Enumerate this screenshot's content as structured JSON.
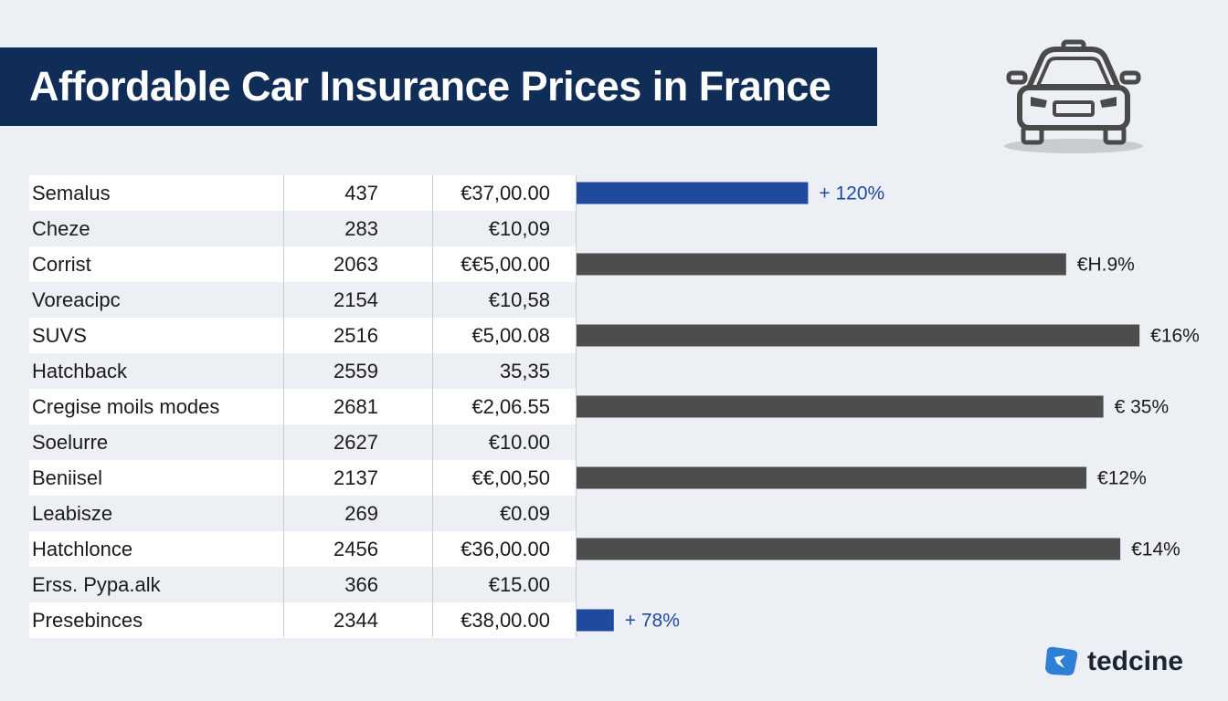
{
  "header": {
    "title": "Affordable Car Insurance Prices in France"
  },
  "brand": {
    "name": "tedcine",
    "logo_icon": "brand-logo-icon",
    "accent": "#2f7fd6"
  },
  "colors": {
    "banner": "#0f2d57",
    "bar_blue": "#1f4a9e",
    "bar_gray": "#4d4d4d",
    "pct_blue": "#1f4a9e",
    "pct_dark": "#1b1b1b"
  },
  "icons": {
    "car": "car-icon"
  },
  "chart_data": {
    "type": "table",
    "columns": [
      "",
      "",
      "",
      ""
    ],
    "rows": [
      {
        "label": "Semalus",
        "count": "437",
        "price": "€37,00.00",
        "bar": 0.41,
        "bar_color": "blue",
        "pct": "+ 120%"
      },
      {
        "label": "Cheze",
        "count": "283",
        "price": "€10,09",
        "bar": 0,
        "bar_color": "none",
        "pct": ""
      },
      {
        "label": "Corrist",
        "count": "2063",
        "price": "€€5,00.00",
        "bar": 0.867,
        "bar_color": "gray",
        "pct": "€H.9%"
      },
      {
        "label": "Voreacipc",
        "count": "2154",
        "price": "€10,58",
        "bar": 0,
        "bar_color": "none",
        "pct": ""
      },
      {
        "label": "SUVS",
        "count": "2516",
        "price": "€5,00.08",
        "bar": 0.997,
        "bar_color": "gray",
        "pct": "€16%"
      },
      {
        "label": "Hatchback",
        "count": "2559",
        "price": "35,35",
        "bar": 0,
        "bar_color": "none",
        "pct": ""
      },
      {
        "label": "Cregise moils modes",
        "count": "2681",
        "price": "€2,06.55",
        "bar": 0.933,
        "bar_color": "gray",
        "pct": "€ 35%"
      },
      {
        "label": "Soelurre",
        "count": "2627",
        "price": "€10.00",
        "bar": 0,
        "bar_color": "none",
        "pct": ""
      },
      {
        "label": "Beniisel",
        "count": "2137",
        "price": "€€,00,50",
        "bar": 0.903,
        "bar_color": "gray",
        "pct": "€12%"
      },
      {
        "label": "Leabisze",
        "count": "269",
        "price": "€0.09",
        "bar": 0,
        "bar_color": "none",
        "pct": ""
      },
      {
        "label": "Hatchlonce",
        "count": "2456",
        "price": "€36,00.00",
        "bar": 0.963,
        "bar_color": "gray",
        "pct": "€14%"
      },
      {
        "label": "Erss. Pypa.alk",
        "count": "366",
        "price": "€15.00",
        "bar": 0,
        "bar_color": "none",
        "pct": ""
      },
      {
        "label": "Presebinces",
        "count": "2344",
        "price": "€38,00.00",
        "bar": 0.066,
        "bar_color": "blue",
        "pct": "+ 78%"
      }
    ]
  }
}
